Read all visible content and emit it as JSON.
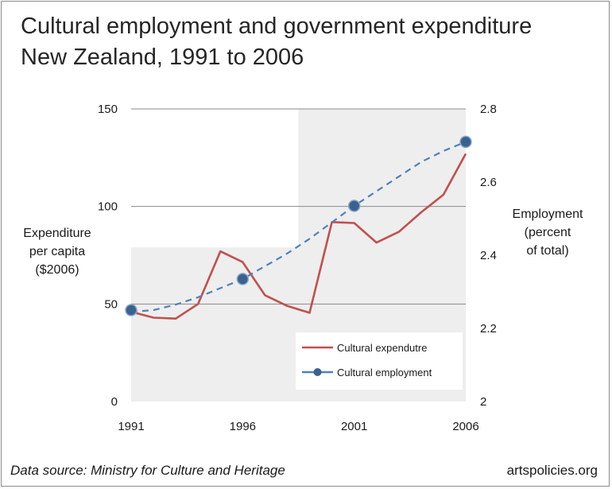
{
  "chart_data": {
    "type": "line",
    "title_line1": "Cultural employment and government expenditure",
    "title_line2": "New Zealand, 1991 to 2006",
    "ylabel_left": [
      "Expenditure",
      "per capita",
      "($2006)"
    ],
    "ylabel_right": [
      "Employment",
      "(percent",
      "of total)"
    ],
    "x_ticks": [
      "1991",
      "1996",
      "2001",
      "2006"
    ],
    "y_left_ticks": [
      "0",
      "50",
      "100",
      "150"
    ],
    "y_right_ticks": [
      "2",
      "2.2",
      "2.4",
      "2.6",
      "2.8"
    ],
    "ylim_left": [
      0,
      150
    ],
    "ylim_right": [
      2,
      2.8
    ],
    "xlim": [
      1991,
      2006
    ],
    "grid": "horizontal",
    "legend_position": "bottom-right",
    "shaded_regions": [
      {
        "x_start": 1991,
        "x_end": 1998.5,
        "y_top": 79
      },
      {
        "x_start": 1998.5,
        "x_end": 2006,
        "y_top": 150
      }
    ],
    "white_regions": [
      {
        "x_start": 1991,
        "x_end": 1998.5,
        "y_top": 150,
        "y_bottom": 79
      },
      {
        "x_start": 1998.5,
        "x_end": 2006,
        "y_top": 80,
        "y_bottom": 0
      }
    ],
    "series": [
      {
        "name": "Cultural expendutre",
        "axis": "left",
        "color": "#c0504d",
        "style": "solid",
        "x": [
          1991,
          1992,
          1993,
          1994,
          1995,
          1996,
          1997,
          1998,
          1999,
          2000,
          2001,
          2002,
          2003,
          2004,
          2005,
          2006
        ],
        "values": [
          46,
          43,
          42.5,
          50,
          77,
          71.5,
          54.5,
          49,
          45.5,
          92,
          91.5,
          81.5,
          87,
          97,
          106,
          127
        ]
      },
      {
        "name": "Cultural employment",
        "axis": "right",
        "color": "#4f81bd",
        "marker_color": "#3b6190",
        "style": "dashed",
        "trend_x": [
          1991,
          1992,
          1993,
          1994,
          1995,
          1996,
          1997,
          1998,
          1999,
          2000,
          2001,
          2002,
          2003,
          2004,
          2005,
          2006
        ],
        "trend_values": [
          2.245,
          2.25,
          2.265,
          2.285,
          2.31,
          2.335,
          2.37,
          2.405,
          2.445,
          2.49,
          2.535,
          2.575,
          2.615,
          2.655,
          2.685,
          2.71
        ],
        "markers_x": [
          1991,
          1996,
          2001,
          2006
        ],
        "markers_values": [
          2.25,
          2.335,
          2.535,
          2.71
        ]
      }
    ]
  },
  "footer": {
    "source": "Data source: Ministry for Culture and Heritage",
    "credit": "artspolicies.org"
  }
}
